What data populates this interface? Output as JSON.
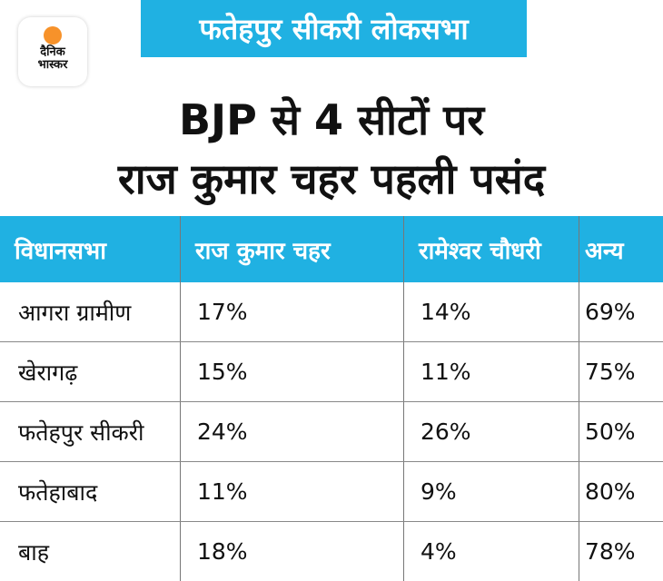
{
  "logo": {
    "line1": "दैनिक",
    "line2": "भास्कर",
    "accent": "#f7922a"
  },
  "banner": "फतेहपुर सीकरी लोकसभा",
  "title": {
    "line1": "BJP से 4 सीटों पर",
    "line2": "राज कुमार चहर पहली पसंद"
  },
  "table": {
    "headers": [
      "विधानसभा",
      "राज कुमार चहर",
      "रामेश्वर चौधरी",
      "अन्य"
    ],
    "rows": [
      [
        "आगरा ग्रामीण",
        "17%",
        "14%",
        "69%"
      ],
      [
        "खेरागढ़",
        "15%",
        "11%",
        "75%"
      ],
      [
        "फतेहपुर सीकरी",
        "24%",
        "26%",
        "50%"
      ],
      [
        "फतेहाबाद",
        "11%",
        "9%",
        "80%"
      ],
      [
        "बाह",
        "18%",
        "4%",
        "78%"
      ]
    ]
  },
  "colors": {
    "header_bg": "#20b1e2"
  }
}
